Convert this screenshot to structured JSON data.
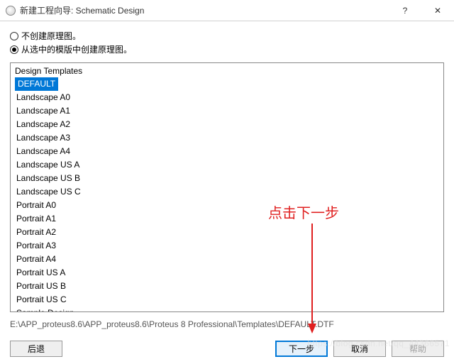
{
  "titlebar": {
    "title": "新建工程向导: Schematic Design",
    "help": "?",
    "close": "✕"
  },
  "radios": {
    "opt1": "不创建原理图。",
    "opt2": "从选中的模版中创建原理图。",
    "selected": 1
  },
  "listbox": {
    "header": "Design Templates",
    "items": [
      "DEFAULT",
      "Landscape A0",
      "Landscape A1",
      "Landscape A2",
      "Landscape A3",
      "Landscape A4",
      "Landscape US A",
      "Landscape US B",
      "Landscape US C",
      "Portrait A0",
      "Portrait A1",
      "Portrait A2",
      "Portrait A3",
      "Portrait A4",
      "Portrait US A",
      "Portrait US B",
      "Portrait US C",
      "Sample Design"
    ],
    "selected_index": 0
  },
  "path": "E:\\APP_proteus8.6\\APP_proteus8.6\\Proteus 8 Professional\\Templates\\DEFAULT.DTF",
  "buttons": {
    "back": "后退",
    "next": "下一步",
    "cancel": "取消",
    "help": "帮助"
  },
  "annotation": {
    "text": "点击下一步",
    "arrow_color": "#e02020"
  },
  "watermark": "https://blog.csdn.net/qq_44366571"
}
